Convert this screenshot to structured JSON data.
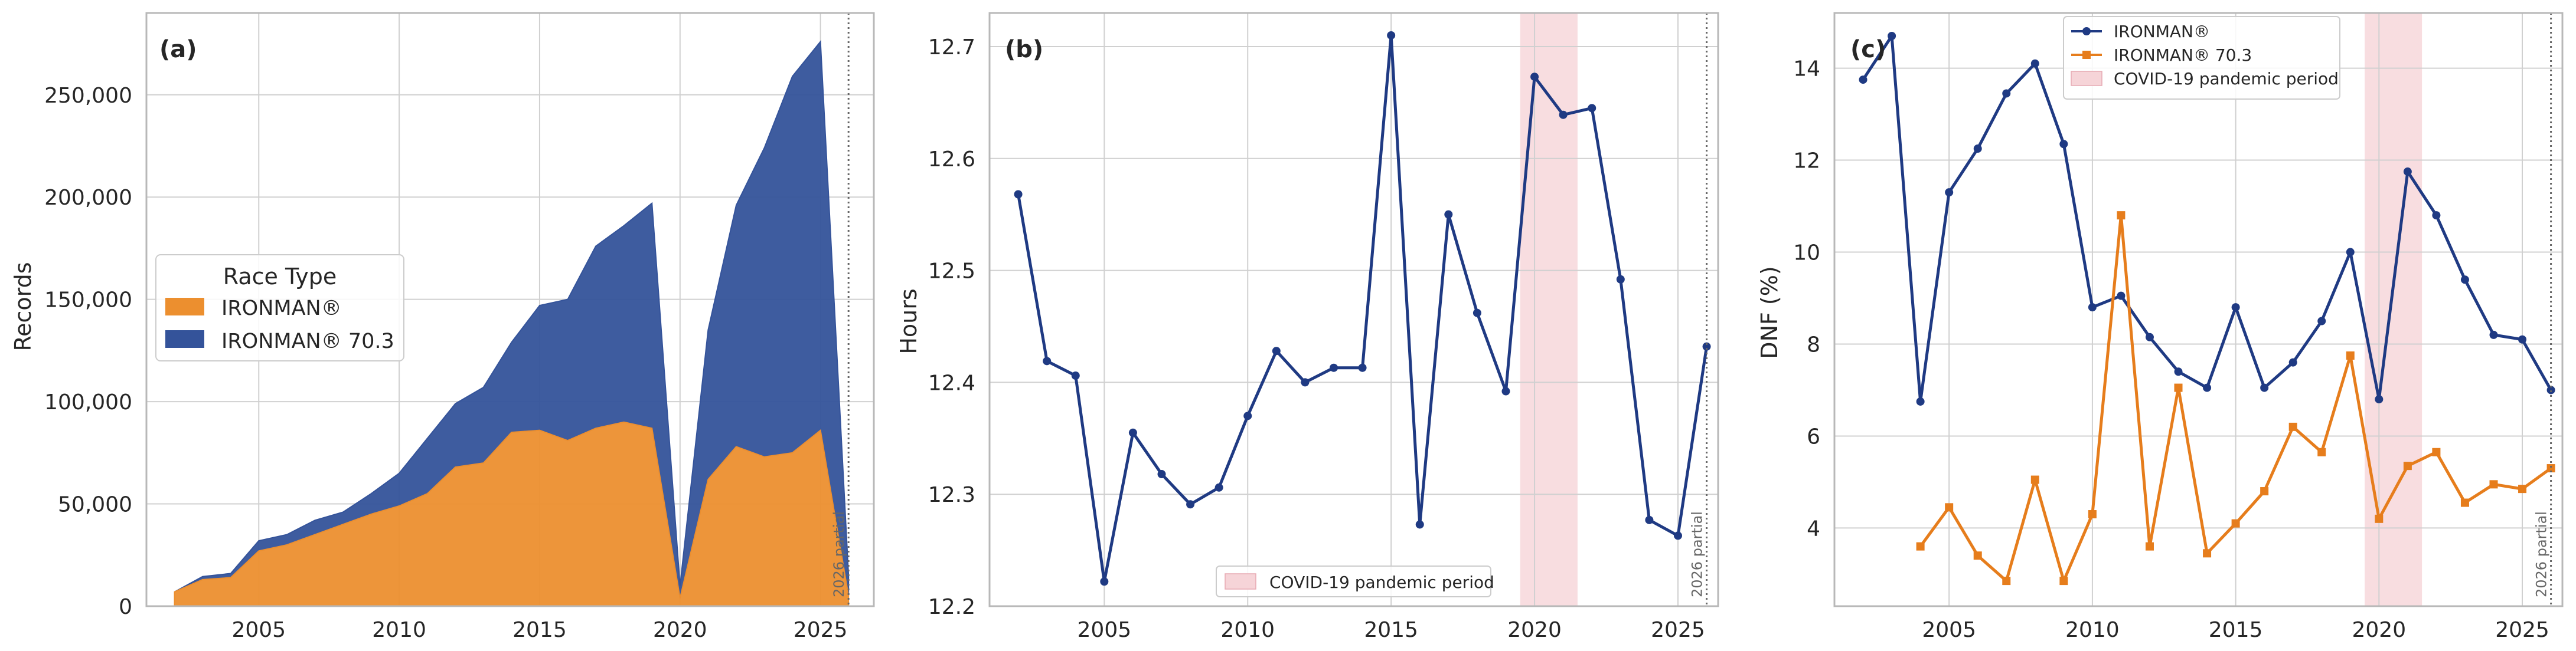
{
  "colors": {
    "ironman": "#ec8f2f",
    "ironman703": "#34539a",
    "line_blue": "#1f3a83",
    "line_orange": "#e67d1c",
    "covid": "#f6d4d8",
    "grid": "#d0d0d0",
    "axis": "#b8b8b8",
    "text": "#262626"
  },
  "chart_data": [
    {
      "type": "area",
      "panel_label": "(a)",
      "ylabel": "Records",
      "xlim": [
        2001,
        2026.9
      ],
      "ylim": [
        0,
        290000
      ],
      "xticks": [
        2005,
        2010,
        2015,
        2020,
        2025
      ],
      "yticks": [
        0,
        50000,
        100000,
        150000,
        200000,
        250000
      ],
      "ytick_labels": [
        "0",
        "50,000",
        "100,000",
        "150,000",
        "200,000",
        "250,000"
      ],
      "marker_line_x": 2026,
      "marker_line_label": "2026 partial",
      "legend": {
        "title": "Race Type",
        "placement": "center-left"
      },
      "x": [
        2002,
        2003,
        2004,
        2005,
        2006,
        2007,
        2008,
        2009,
        2010,
        2011,
        2012,
        2013,
        2014,
        2015,
        2016,
        2017,
        2018,
        2019,
        2020,
        2021,
        2022,
        2023,
        2024,
        2025,
        2026
      ],
      "series": [
        {
          "name": "IRONMAN®",
          "values": [
            7000,
            13000,
            14000,
            27000,
            30000,
            35000,
            40000,
            45000,
            49000,
            55000,
            68000,
            70000,
            85000,
            86000,
            81000,
            87000,
            90000,
            87000,
            4000,
            62000,
            78000,
            73000,
            75000,
            86000,
            5000
          ]
        },
        {
          "name": "IRONMAN® 70.3",
          "values": [
            0,
            1500,
            2000,
            5000,
            5000,
            7000,
            6000,
            10000,
            16000,
            27000,
            31000,
            37000,
            44000,
            61000,
            69000,
            89000,
            96000,
            110000,
            6000,
            73000,
            118000,
            151000,
            184000,
            190000,
            10000
          ]
        }
      ]
    },
    {
      "type": "line",
      "panel_label": "(b)",
      "ylabel": "Hours",
      "xlim": [
        2001,
        2026.4
      ],
      "ylim": [
        12.2,
        12.73
      ],
      "xticks": [
        2005,
        2010,
        2015,
        2020,
        2025
      ],
      "yticks": [
        12.2,
        12.3,
        12.4,
        12.5,
        12.6,
        12.7
      ],
      "ytick_labels": [
        "12.2",
        "12.3",
        "12.4",
        "12.5",
        "12.6",
        "12.7"
      ],
      "covid_band": [
        2019.5,
        2021.5
      ],
      "covid_label": "COVID-19 pandemic period",
      "marker_line_x": 2026,
      "marker_line_label": "2026 partial",
      "legend": {
        "placement": "bottom-right"
      },
      "x": [
        2002,
        2003,
        2004,
        2005,
        2006,
        2007,
        2008,
        2009,
        2010,
        2011,
        2012,
        2013,
        2014,
        2015,
        2016,
        2017,
        2018,
        2019,
        2020,
        2021,
        2022,
        2023,
        2024,
        2025,
        2026
      ],
      "series": [
        {
          "name": "",
          "values": [
            12.568,
            12.419,
            12.406,
            12.222,
            12.355,
            12.318,
            12.291,
            12.306,
            12.37,
            12.428,
            12.4,
            12.413,
            12.413,
            12.71,
            12.273,
            12.55,
            12.462,
            12.392,
            12.673,
            12.639,
            12.645,
            12.492,
            12.277,
            12.263,
            12.432
          ]
        }
      ]
    },
    {
      "type": "line",
      "panel_label": "(c)",
      "ylabel": "DNF (%)",
      "xlim": [
        2001,
        2026.4
      ],
      "ylim": [
        2.3,
        15.2
      ],
      "xticks": [
        2005,
        2010,
        2015,
        2020,
        2025
      ],
      "yticks": [
        4,
        6,
        8,
        10,
        12,
        14
      ],
      "ytick_labels": [
        "4",
        "6",
        "8",
        "10",
        "12",
        "14"
      ],
      "covid_band": [
        2019.5,
        2021.5
      ],
      "covid_label": "COVID-19 pandemic period",
      "marker_line_x": 2026,
      "marker_line_label": "2026 partial",
      "legend": {
        "placement": "top-center"
      },
      "x": [
        2002,
        2003,
        2004,
        2005,
        2006,
        2007,
        2008,
        2009,
        2010,
        2011,
        2012,
        2013,
        2014,
        2015,
        2016,
        2017,
        2018,
        2019,
        2020,
        2021,
        2022,
        2023,
        2024,
        2025,
        2026
      ],
      "series": [
        {
          "name": "IRONMAN®",
          "marker": "circle",
          "values": [
            13.75,
            14.7,
            6.75,
            11.3,
            12.25,
            13.45,
            14.1,
            12.35,
            8.8,
            9.05,
            8.15,
            7.4,
            7.05,
            8.8,
            7.05,
            7.6,
            8.5,
            10.0,
            6.8,
            11.75,
            10.8,
            9.4,
            8.2,
            8.1,
            7.0
          ]
        },
        {
          "name": "IRONMAN® 70.3",
          "marker": "square",
          "values": [
            null,
            null,
            3.6,
            4.45,
            3.4,
            2.85,
            5.05,
            2.85,
            4.3,
            10.8,
            3.6,
            7.05,
            3.45,
            4.1,
            4.8,
            6.2,
            5.65,
            7.75,
            4.2,
            5.35,
            5.65,
            4.55,
            4.95,
            4.85,
            5.3
          ]
        }
      ]
    }
  ]
}
